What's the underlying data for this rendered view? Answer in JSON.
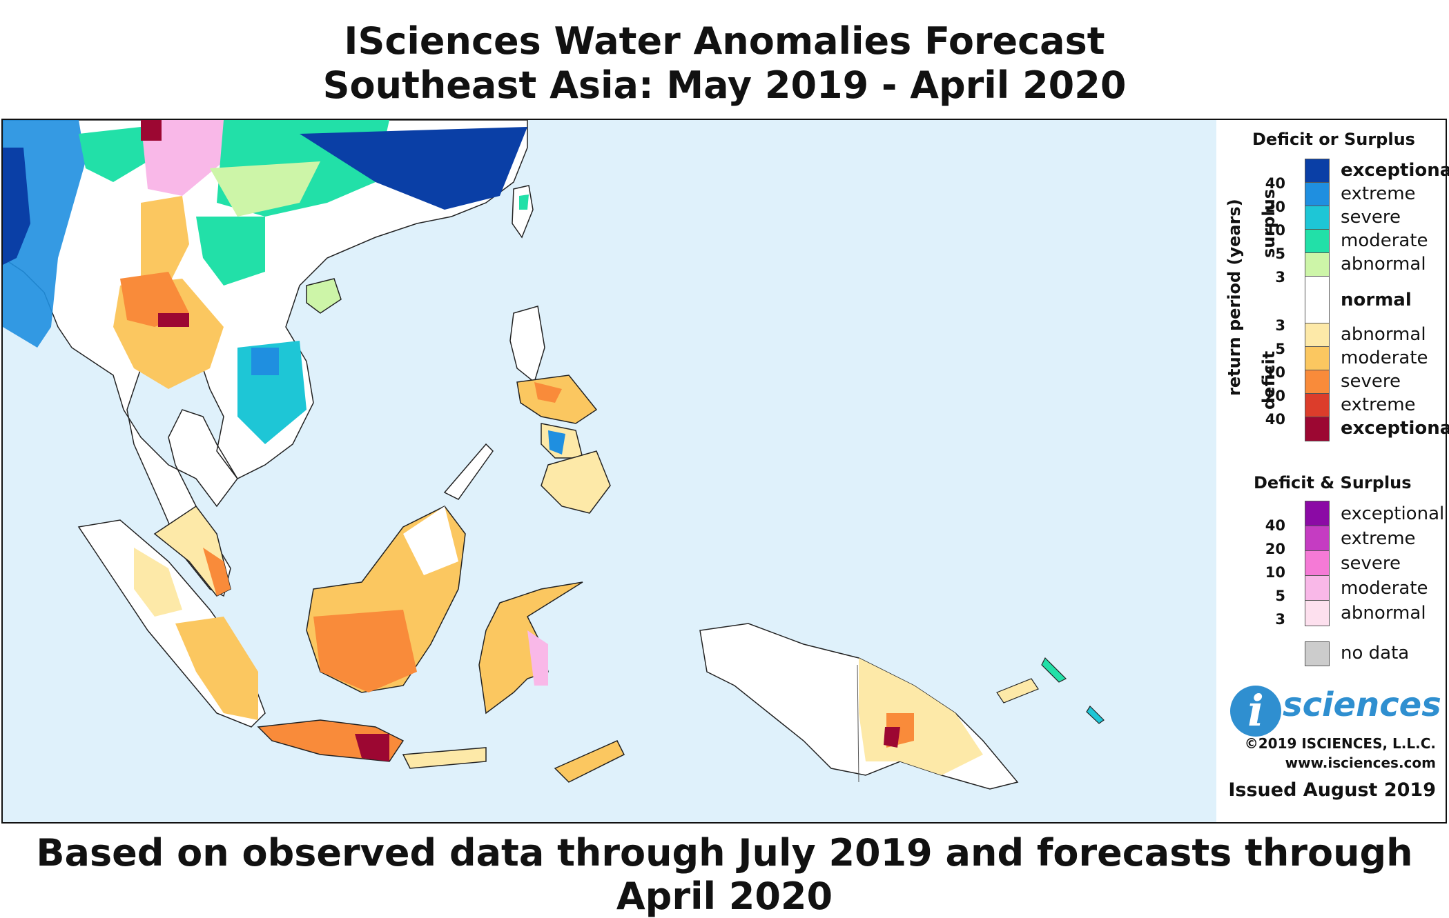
{
  "title": {
    "line1": "ISciences Water Anomalies Forecast",
    "line2": "Southeast Asia: May 2019 - April 2020"
  },
  "footer": "Based on observed data through July 2019 and forecasts through April 2020",
  "legend": {
    "section1_title": "Deficit or Surplus",
    "surplus_axis": "surplus",
    "deficit_axis": "deficit",
    "return_axis": "return period (years)",
    "surplus_ticks": [
      "40",
      "20",
      "10",
      "5",
      "3"
    ],
    "deficit_ticks": [
      "3",
      "5",
      "10",
      "20",
      "40"
    ],
    "surplus": [
      {
        "label": "exceptional",
        "color": "#0a3fa6"
      },
      {
        "label": "extreme",
        "color": "#1f8fe0"
      },
      {
        "label": "severe",
        "color": "#1ec6d6"
      },
      {
        "label": "moderate",
        "color": "#22e0a8"
      },
      {
        "label": "abnormal",
        "color": "#cdf5a8"
      }
    ],
    "normal": {
      "label": "normal",
      "color": "#ffffff"
    },
    "deficit": [
      {
        "label": "abnormal",
        "color": "#fde9a8"
      },
      {
        "label": "moderate",
        "color": "#fbc760"
      },
      {
        "label": "severe",
        "color": "#f98b3a"
      },
      {
        "label": "extreme",
        "color": "#dc3d2b"
      },
      {
        "label": "exceptional",
        "color": "#9c0732"
      }
    ],
    "section2_title": "Deficit & Surplus",
    "both_ticks": [
      "40",
      "20",
      "10",
      "5",
      "3"
    ],
    "both": [
      {
        "label": "exceptional",
        "color": "#8b0aa5"
      },
      {
        "label": "extreme",
        "color": "#c53cc2"
      },
      {
        "label": "severe",
        "color": "#f57ad6"
      },
      {
        "label": "moderate",
        "color": "#f9b8e8"
      },
      {
        "label": "abnormal",
        "color": "#fde0ee"
      }
    ],
    "nodata": {
      "label": "no data",
      "color": "#cccccc"
    }
  },
  "branding": {
    "logo_i": "i",
    "logo_text": "sciences",
    "copyright": "©2019 ISCIENCES, L.L.C.",
    "website": "www.isciences.com",
    "issued": "Issued August 2019"
  },
  "map": {
    "ocean_color": "#dff1fb",
    "coast_color": "#222222"
  }
}
